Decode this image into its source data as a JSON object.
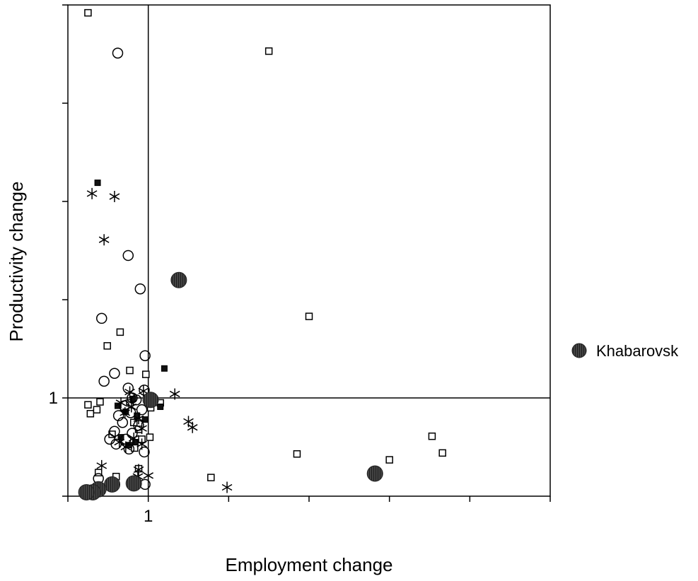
{
  "chart_data": {
    "type": "scatter",
    "xlabel": "Employment change",
    "ylabel": "Productivity change",
    "xlim": [
      0,
      6
    ],
    "ylim": [
      0,
      5
    ],
    "x_ticks": [
      0,
      1,
      2,
      3,
      4,
      5,
      6
    ],
    "y_ticks": [
      0,
      1,
      2,
      3,
      4,
      5
    ],
    "x_tick_labels": [
      {
        "value": 1,
        "label": "1"
      }
    ],
    "y_tick_labels": [
      {
        "value": 1,
        "label": "1"
      }
    ],
    "reference_lines": {
      "x": 1,
      "y": 1
    },
    "legend": {
      "entries": [
        "Khabarovsk"
      ],
      "position": "right"
    },
    "series": [
      {
        "name": "Khabarovsk",
        "marker": "filled-hatched-circle",
        "points": [
          [
            1.38,
            2.2
          ],
          [
            3.82,
            0.23
          ],
          [
            0.82,
            0.13
          ],
          [
            0.55,
            0.12
          ],
          [
            0.38,
            0.07
          ],
          [
            0.31,
            0.04
          ],
          [
            0.23,
            0.04
          ],
          [
            1.03,
            0.98
          ]
        ]
      },
      {
        "marker": "open-square",
        "points": [
          [
            0.25,
            4.92
          ],
          [
            2.5,
            4.53
          ],
          [
            3.0,
            1.83
          ],
          [
            0.65,
            1.67
          ],
          [
            0.49,
            1.53
          ],
          [
            0.77,
            1.28
          ],
          [
            0.97,
            1.24
          ],
          [
            0.25,
            0.93
          ],
          [
            0.28,
            0.84
          ],
          [
            0.36,
            0.88
          ],
          [
            0.4,
            0.96
          ],
          [
            1.15,
            0.95
          ],
          [
            1.03,
            0.9
          ],
          [
            0.77,
            0.95
          ],
          [
            0.82,
            0.75
          ],
          [
            0.88,
            0.68
          ],
          [
            0.92,
            0.58
          ],
          [
            1.02,
            0.6
          ],
          [
            0.55,
            0.63
          ],
          [
            0.83,
            0.49
          ],
          [
            0.88,
            0.28
          ],
          [
            0.38,
            0.24
          ],
          [
            0.6,
            0.2
          ],
          [
            0.5,
            0.1
          ],
          [
            1.78,
            0.19
          ],
          [
            2.85,
            0.43
          ],
          [
            4.0,
            0.37
          ],
          [
            4.53,
            0.61
          ],
          [
            4.66,
            0.44
          ]
        ]
      },
      {
        "marker": "open-circle",
        "points": [
          [
            0.62,
            4.51
          ],
          [
            0.75,
            2.45
          ],
          [
            0.9,
            2.11
          ],
          [
            0.42,
            1.81
          ],
          [
            0.96,
            1.43
          ],
          [
            0.45,
            1.17
          ],
          [
            0.58,
            1.25
          ],
          [
            0.75,
            1.1
          ],
          [
            0.95,
            1.08
          ],
          [
            0.8,
            1.0
          ],
          [
            0.85,
            0.98
          ],
          [
            0.7,
            0.92
          ],
          [
            0.78,
            0.85
          ],
          [
            0.63,
            0.82
          ],
          [
            0.68,
            0.75
          ],
          [
            0.58,
            0.66
          ],
          [
            0.72,
            0.58
          ],
          [
            0.52,
            0.58
          ],
          [
            0.6,
            0.53
          ],
          [
            0.8,
            0.64
          ],
          [
            0.76,
            0.48
          ],
          [
            0.95,
            0.45
          ],
          [
            0.88,
            0.72
          ],
          [
            0.92,
            0.88
          ],
          [
            0.96,
            0.12
          ],
          [
            0.38,
            0.18
          ]
        ]
      },
      {
        "marker": "filled-square",
        "points": [
          [
            0.37,
            3.19
          ],
          [
            1.2,
            1.3
          ],
          [
            0.62,
            0.92
          ],
          [
            0.72,
            0.86
          ],
          [
            0.81,
            0.99
          ],
          [
            0.86,
            0.82
          ],
          [
            0.96,
            0.78
          ],
          [
            1.15,
            0.91
          ],
          [
            0.66,
            0.6
          ],
          [
            0.84,
            0.55
          ],
          [
            0.76,
            0.52
          ]
        ]
      },
      {
        "marker": "asterisk",
        "points": [
          [
            0.3,
            3.08
          ],
          [
            0.58,
            3.05
          ],
          [
            0.45,
            2.61
          ],
          [
            1.33,
            1.04
          ],
          [
            1.5,
            0.76
          ],
          [
            1.55,
            0.7
          ],
          [
            0.66,
            0.95
          ],
          [
            0.77,
            1.06
          ],
          [
            0.94,
            1.07
          ],
          [
            0.79,
            0.91
          ],
          [
            0.71,
            0.85
          ],
          [
            0.88,
            0.79
          ],
          [
            0.92,
            0.69
          ],
          [
            0.82,
            0.59
          ],
          [
            0.64,
            0.55
          ],
          [
            0.72,
            0.5
          ],
          [
            0.92,
            0.53
          ],
          [
            0.42,
            0.31
          ],
          [
            0.88,
            0.27
          ],
          [
            1.0,
            0.21
          ],
          [
            1.98,
            0.09
          ],
          [
            0.87,
            0.2
          ]
        ]
      }
    ]
  }
}
